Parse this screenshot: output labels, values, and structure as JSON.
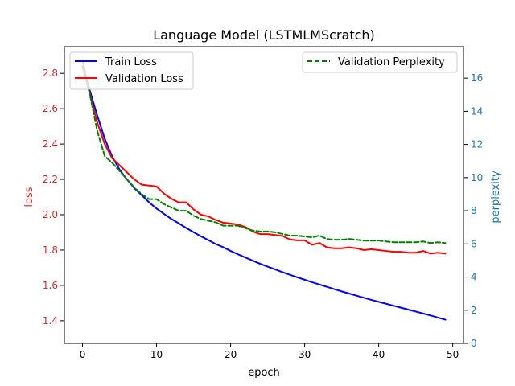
{
  "chart_data": {
    "type": "line",
    "title": "Language Model (LSTMLMScratch)",
    "xlabel": "epoch",
    "ylabel_left": "loss",
    "ylabel_right": "perplexity",
    "xlim": [
      -2.45,
      51.45
    ],
    "ylim_left": [
      1.272,
      2.951
    ],
    "ylim_right": [
      0,
      17.9
    ],
    "xticks": [
      0,
      10,
      20,
      30,
      40,
      50
    ],
    "yticks_left": [
      1.4,
      1.6,
      1.8,
      2.0,
      2.2,
      2.4,
      2.6,
      2.8
    ],
    "yticks_right": [
      0,
      2,
      4,
      6,
      8,
      10,
      12,
      14,
      16
    ],
    "x": [
      0,
      1,
      2,
      3,
      4,
      5,
      6,
      7,
      8,
      9,
      10,
      11,
      12,
      13,
      14,
      15,
      16,
      17,
      18,
      19,
      20,
      21,
      22,
      23,
      24,
      25,
      26,
      27,
      28,
      29,
      30,
      31,
      32,
      33,
      34,
      35,
      36,
      37,
      38,
      39,
      40,
      41,
      42,
      43,
      44,
      45,
      46,
      47,
      48,
      49
    ],
    "series": [
      {
        "name": "Train Loss",
        "axis": "left",
        "color": "#0000ff",
        "style": "solid",
        "values": [
          2.842,
          2.7,
          2.56,
          2.43,
          2.33,
          2.255,
          2.2,
          2.15,
          2.11,
          2.07,
          2.035,
          2.005,
          1.976,
          1.951,
          1.925,
          1.901,
          1.878,
          1.856,
          1.834,
          1.816,
          1.795,
          1.776,
          1.758,
          1.74,
          1.722,
          1.706,
          1.691,
          1.675,
          1.66,
          1.646,
          1.632,
          1.618,
          1.605,
          1.592,
          1.579,
          1.566,
          1.554,
          1.542,
          1.53,
          1.518,
          1.507,
          1.496,
          1.485,
          1.474,
          1.463,
          1.452,
          1.441,
          1.43,
          1.418,
          1.406
        ]
      },
      {
        "name": "Validation Loss",
        "axis": "left",
        "color": "#ff0000",
        "style": "solid",
        "values": [
          2.842,
          2.68,
          2.52,
          2.4,
          2.32,
          2.28,
          2.24,
          2.2,
          2.17,
          2.165,
          2.16,
          2.12,
          2.09,
          2.07,
          2.07,
          2.03,
          2.0,
          1.99,
          1.97,
          1.955,
          1.95,
          1.945,
          1.93,
          1.905,
          1.89,
          1.89,
          1.885,
          1.88,
          1.86,
          1.855,
          1.855,
          1.83,
          1.84,
          1.815,
          1.81,
          1.81,
          1.815,
          1.81,
          1.8,
          1.805,
          1.8,
          1.795,
          1.79,
          1.79,
          1.785,
          1.785,
          1.795,
          1.78,
          1.785,
          1.78
        ]
      },
      {
        "name": "Validation Perplexity",
        "axis": "right",
        "color": "#008000",
        "style": "dashed",
        "values": [
          17.1,
          15.0,
          12.8,
          11.3,
          10.9,
          10.4,
          9.9,
          9.4,
          9.0,
          8.7,
          8.7,
          8.4,
          8.2,
          8.0,
          8.0,
          7.7,
          7.5,
          7.4,
          7.3,
          7.1,
          7.1,
          7.1,
          6.95,
          6.8,
          6.75,
          6.75,
          6.7,
          6.6,
          6.5,
          6.5,
          6.45,
          6.4,
          6.5,
          6.3,
          6.25,
          6.25,
          6.3,
          6.25,
          6.2,
          6.2,
          6.2,
          6.15,
          6.1,
          6.1,
          6.1,
          6.1,
          6.15,
          6.05,
          6.1,
          6.05
        ]
      }
    ],
    "legends": {
      "left_placement": "upper-left",
      "right_placement": "upper-right"
    },
    "grid": false,
    "colors": {
      "left_axis": "#d62728",
      "right_axis": "#1f77b4",
      "frame": "#000000"
    }
  }
}
